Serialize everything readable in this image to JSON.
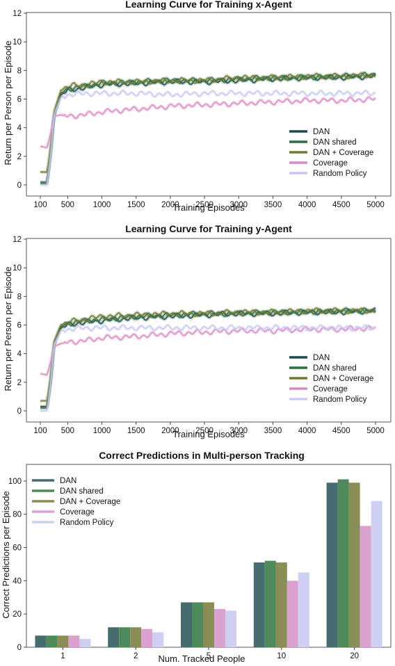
{
  "chart_data": [
    {
      "type": "line",
      "title": "Learning Curve for Training x-Agent",
      "xlabel": "Training Episodes",
      "ylabel": "Return per Person per Episode",
      "xlim": [
        100,
        5000
      ],
      "ylim": [
        0,
        12
      ],
      "xticks": [
        100,
        500,
        1000,
        1500,
        2000,
        2500,
        3000,
        3500,
        4000,
        4500,
        5000
      ],
      "yticks": [
        0,
        2,
        4,
        6,
        8,
        10,
        12
      ],
      "grid": false,
      "legend_position": "lower-right",
      "series": [
        {
          "name": "DAN",
          "color": "#1f4a4c",
          "points": [
            [
              100,
              0.1
            ],
            [
              200,
              0.1
            ],
            [
              260,
              2.5
            ],
            [
              300,
              4.8
            ],
            [
              400,
              6.3
            ],
            [
              500,
              6.6
            ],
            [
              750,
              6.8
            ],
            [
              1000,
              7.0
            ],
            [
              1500,
              7.1
            ],
            [
              2000,
              7.2
            ],
            [
              2500,
              7.2
            ],
            [
              3000,
              7.3
            ],
            [
              3500,
              7.4
            ],
            [
              4000,
              7.5
            ],
            [
              4500,
              7.5
            ],
            [
              5000,
              7.6
            ]
          ]
        },
        {
          "name": "DAN shared",
          "color": "#2e6e3e",
          "points": [
            [
              100,
              0.2
            ],
            [
              200,
              0.2
            ],
            [
              260,
              2.6
            ],
            [
              300,
              4.9
            ],
            [
              400,
              6.4
            ],
            [
              500,
              6.7
            ],
            [
              750,
              6.9
            ],
            [
              1000,
              7.1
            ],
            [
              1500,
              7.2
            ],
            [
              2000,
              7.3
            ],
            [
              2500,
              7.3
            ],
            [
              3000,
              7.4
            ],
            [
              3500,
              7.5
            ],
            [
              4000,
              7.5
            ],
            [
              4500,
              7.6
            ],
            [
              5000,
              7.7
            ]
          ]
        },
        {
          "name": "DAN + Coverage",
          "color": "#6b7a2e",
          "points": [
            [
              100,
              0.9
            ],
            [
              200,
              0.9
            ],
            [
              260,
              3.0
            ],
            [
              300,
              5.1
            ],
            [
              400,
              6.6
            ],
            [
              500,
              6.9
            ],
            [
              750,
              7.0
            ],
            [
              1000,
              7.2
            ],
            [
              1500,
              7.2
            ],
            [
              2000,
              7.3
            ],
            [
              2500,
              7.3
            ],
            [
              3000,
              7.5
            ],
            [
              3500,
              7.5
            ],
            [
              4000,
              7.6
            ],
            [
              4500,
              7.6
            ],
            [
              5000,
              7.7
            ]
          ]
        },
        {
          "name": "Coverage",
          "color": "#d98cc4",
          "points": [
            [
              100,
              2.7
            ],
            [
              200,
              2.6
            ],
            [
              260,
              3.8
            ],
            [
              300,
              4.8
            ],
            [
              400,
              4.9
            ],
            [
              500,
              4.8
            ],
            [
              750,
              4.9
            ],
            [
              1000,
              5.1
            ],
            [
              1500,
              5.3
            ],
            [
              2000,
              5.5
            ],
            [
              2500,
              5.6
            ],
            [
              3000,
              5.7
            ],
            [
              3500,
              5.8
            ],
            [
              4000,
              5.9
            ],
            [
              4500,
              5.9
            ],
            [
              5000,
              6.0
            ]
          ]
        },
        {
          "name": "Random Policy",
          "color": "#c9c8f2",
          "points": [
            [
              100,
              0.0
            ],
            [
              200,
              0.0
            ],
            [
              260,
              2.4
            ],
            [
              300,
              4.9
            ],
            [
              400,
              6.1
            ],
            [
              500,
              6.3
            ],
            [
              750,
              6.4
            ],
            [
              1000,
              6.4
            ],
            [
              1500,
              6.4
            ],
            [
              2000,
              6.3
            ],
            [
              2500,
              6.4
            ],
            [
              3000,
              6.4
            ],
            [
              3500,
              6.4
            ],
            [
              4000,
              6.4
            ],
            [
              4500,
              6.4
            ],
            [
              5000,
              6.4
            ]
          ]
        }
      ]
    },
    {
      "type": "line",
      "title": "Learning Curve for Training y-Agent",
      "xlabel": "Training Episodes",
      "ylabel": "Return per Person per Episode",
      "xlim": [
        100,
        5000
      ],
      "ylim": [
        0,
        12
      ],
      "xticks": [
        100,
        500,
        1000,
        1500,
        2000,
        2500,
        3000,
        3500,
        4000,
        4500,
        5000
      ],
      "yticks": [
        0,
        2,
        4,
        6,
        8,
        10,
        12
      ],
      "grid": false,
      "legend_position": "lower-right",
      "series": [
        {
          "name": "DAN",
          "color": "#1f4a4c",
          "points": [
            [
              100,
              0.3
            ],
            [
              200,
              0.3
            ],
            [
              260,
              2.4
            ],
            [
              300,
              4.6
            ],
            [
              400,
              5.8
            ],
            [
              500,
              6.0
            ],
            [
              750,
              6.2
            ],
            [
              1000,
              6.3
            ],
            [
              1500,
              6.5
            ],
            [
              2000,
              6.6
            ],
            [
              2500,
              6.7
            ],
            [
              3000,
              6.8
            ],
            [
              3500,
              6.8
            ],
            [
              4000,
              6.9
            ],
            [
              4500,
              6.9
            ],
            [
              5000,
              7.0
            ]
          ]
        },
        {
          "name": "DAN shared",
          "color": "#2e6e3e",
          "points": [
            [
              100,
              0.2
            ],
            [
              200,
              0.2
            ],
            [
              260,
              2.3
            ],
            [
              300,
              4.7
            ],
            [
              400,
              5.9
            ],
            [
              500,
              6.1
            ],
            [
              750,
              6.3
            ],
            [
              1000,
              6.4
            ],
            [
              1500,
              6.6
            ],
            [
              2000,
              6.7
            ],
            [
              2500,
              6.8
            ],
            [
              3000,
              6.8
            ],
            [
              3500,
              6.9
            ],
            [
              4000,
              6.9
            ],
            [
              4500,
              7.0
            ],
            [
              5000,
              7.0
            ]
          ]
        },
        {
          "name": "DAN + Coverage",
          "color": "#6b7a2e",
          "points": [
            [
              100,
              0.7
            ],
            [
              200,
              0.7
            ],
            [
              260,
              2.7
            ],
            [
              300,
              4.8
            ],
            [
              400,
              6.0
            ],
            [
              500,
              6.2
            ],
            [
              750,
              6.4
            ],
            [
              1000,
              6.6
            ],
            [
              1500,
              6.7
            ],
            [
              2000,
              6.8
            ],
            [
              2500,
              6.8
            ],
            [
              3000,
              6.9
            ],
            [
              3500,
              6.9
            ],
            [
              4000,
              7.0
            ],
            [
              4500,
              7.0
            ],
            [
              5000,
              7.0
            ]
          ]
        },
        {
          "name": "Coverage",
          "color": "#d98cc4",
          "points": [
            [
              100,
              2.6
            ],
            [
              200,
              2.5
            ],
            [
              260,
              3.6
            ],
            [
              300,
              4.5
            ],
            [
              400,
              4.7
            ],
            [
              500,
              4.8
            ],
            [
              750,
              4.9
            ],
            [
              1000,
              5.1
            ],
            [
              1500,
              5.2
            ],
            [
              2000,
              5.4
            ],
            [
              2500,
              5.5
            ],
            [
              3000,
              5.6
            ],
            [
              3500,
              5.6
            ],
            [
              4000,
              5.7
            ],
            [
              4500,
              5.7
            ],
            [
              5000,
              5.8
            ]
          ]
        },
        {
          "name": "Random Policy",
          "color": "#c9c8f2",
          "points": [
            [
              100,
              0.0
            ],
            [
              200,
              0.0
            ],
            [
              260,
              2.3
            ],
            [
              300,
              4.6
            ],
            [
              400,
              5.6
            ],
            [
              500,
              5.7
            ],
            [
              750,
              5.8
            ],
            [
              1000,
              5.8
            ],
            [
              1500,
              5.8
            ],
            [
              2000,
              5.8
            ],
            [
              2500,
              5.8
            ],
            [
              3000,
              5.8
            ],
            [
              3500,
              5.8
            ],
            [
              4000,
              5.8
            ],
            [
              4500,
              5.8
            ],
            [
              5000,
              5.8
            ]
          ]
        }
      ]
    },
    {
      "type": "bar",
      "title": "Correct Predictions in Multi-person Tracking",
      "xlabel": "Num. Tracked People",
      "ylabel": "Correct Predictions per Episode",
      "categories": [
        "1",
        "2",
        "5",
        "10",
        "20"
      ],
      "ylim": [
        0,
        110
      ],
      "yticks": [
        0,
        20,
        40,
        60,
        80,
        100
      ],
      "grid": false,
      "legend_position": "top-left",
      "series": [
        {
          "name": "DAN",
          "color": "#466c70",
          "values": [
            7,
            12,
            27,
            51,
            99
          ]
        },
        {
          "name": "DAN shared",
          "color": "#4f8a5a",
          "values": [
            7,
            12,
            27,
            52,
            101
          ]
        },
        {
          "name": "DAN + Coverage",
          "color": "#8a8d55",
          "values": [
            7,
            12,
            27,
            51,
            99
          ]
        },
        {
          "name": "Coverage",
          "color": "#dba2d0",
          "values": [
            7,
            11,
            23,
            40,
            73
          ]
        },
        {
          "name": "Random Policy",
          "color": "#cfcff3",
          "values": [
            5,
            9,
            22,
            45,
            88
          ]
        }
      ]
    }
  ]
}
